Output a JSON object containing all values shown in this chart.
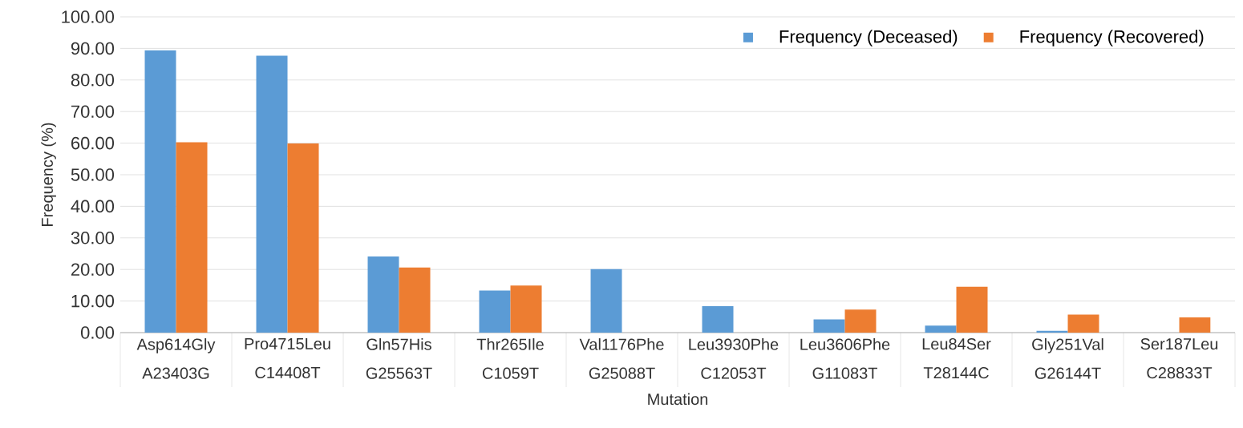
{
  "chart_data": {
    "type": "bar",
    "categories": [
      "Asp614Gly A23403G",
      "Pro4715Leu C14408T",
      "Gln57His G25563T",
      "Thr265Ile C1059T",
      "Val1176Phe G25088T",
      "Leu3930Phe C12053T",
      "Leu3606Phe G11083T",
      "Leu84Ser T28144C",
      "Gly251Val G26144T",
      "Ser187Leu C28833T"
    ],
    "series": [
      {
        "name": "Frequency (Deceased)",
        "color": "#5b9bd5",
        "values": [
          89.4,
          87.7,
          24.1,
          13.3,
          20.1,
          8.4,
          4.2,
          2.2,
          0.6,
          0
        ]
      },
      {
        "name": "Frequency (Recovered)",
        "color": "#ed7d31",
        "values": [
          60.3,
          59.9,
          20.6,
          14.9,
          0,
          0,
          7.3,
          14.5,
          5.7,
          4.8
        ]
      }
    ],
    "xlabel": "Mutation",
    "ylabel": "Frequency  (%)",
    "ylim": [
      0,
      100
    ],
    "yticks": [
      {
        "value": 0,
        "label": "0.00"
      },
      {
        "value": 10,
        "label": "10.00"
      },
      {
        "value": 20,
        "label": "20.00"
      },
      {
        "value": 30,
        "label": "30.00"
      },
      {
        "value": 40,
        "label": "40.00"
      },
      {
        "value": 50,
        "label": "50.00"
      },
      {
        "value": 60,
        "label": "60.00"
      },
      {
        "value": 70,
        "label": "70.00"
      },
      {
        "value": 80,
        "label": "80.00"
      },
      {
        "value": 90,
        "label": "90.00"
      },
      {
        "value": 100,
        "label": "100.00"
      }
    ],
    "grid": "y",
    "legend": "top right"
  }
}
